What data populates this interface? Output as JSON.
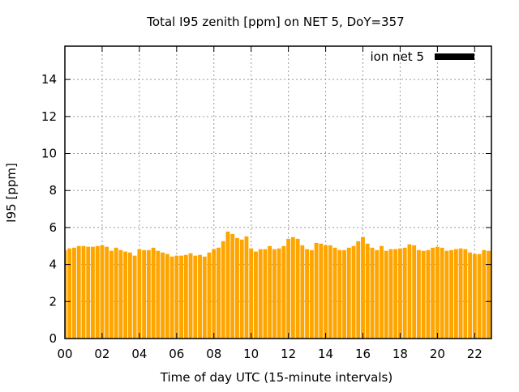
{
  "chart_data": {
    "type": "bar",
    "title": "Total I95 zenith [ppm] on NET 5, DoY=357",
    "xlabel": "Time of day UTC (15-minute intervals)",
    "ylabel": "I95 [ppm]",
    "xlim": [
      0,
      22.9
    ],
    "ylim": [
      0,
      15.8
    ],
    "xticks": [
      "00",
      "02",
      "04",
      "06",
      "08",
      "10",
      "12",
      "14",
      "16",
      "18",
      "20",
      "22"
    ],
    "yticks": [
      "0",
      "2",
      "4",
      "6",
      "8",
      "10",
      "12",
      "14"
    ],
    "grid": true,
    "legend_position": "top-right",
    "bar_color": "#ffa500",
    "series": [
      {
        "name": "ion net 5",
        "legend_color": "#000000",
        "x_start_hour": 0,
        "x_step_hours": 0.25,
        "values": [
          4.78,
          4.87,
          4.91,
          5.0,
          5.0,
          4.96,
          4.96,
          5.0,
          5.04,
          4.96,
          4.74,
          4.91,
          4.78,
          4.7,
          4.65,
          4.48,
          4.83,
          4.78,
          4.78,
          4.91,
          4.74,
          4.65,
          4.57,
          4.43,
          4.48,
          4.48,
          4.52,
          4.61,
          4.48,
          4.52,
          4.43,
          4.65,
          4.83,
          4.91,
          5.26,
          5.78,
          5.65,
          5.43,
          5.35,
          5.52,
          4.87,
          4.7,
          4.83,
          4.83,
          5.0,
          4.83,
          4.87,
          5.0,
          5.39,
          5.48,
          5.39,
          5.04,
          4.83,
          4.78,
          5.17,
          5.13,
          5.04,
          5.04,
          4.91,
          4.78,
          4.78,
          4.91,
          5.0,
          5.26,
          5.48,
          5.13,
          4.91,
          4.78,
          5.0,
          4.74,
          4.83,
          4.83,
          4.87,
          4.91,
          5.09,
          5.04,
          4.78,
          4.74,
          4.78,
          4.91,
          4.96,
          4.91,
          4.74,
          4.78,
          4.83,
          4.87,
          4.83,
          4.65,
          4.57,
          4.57,
          4.78,
          4.74
        ]
      }
    ]
  }
}
